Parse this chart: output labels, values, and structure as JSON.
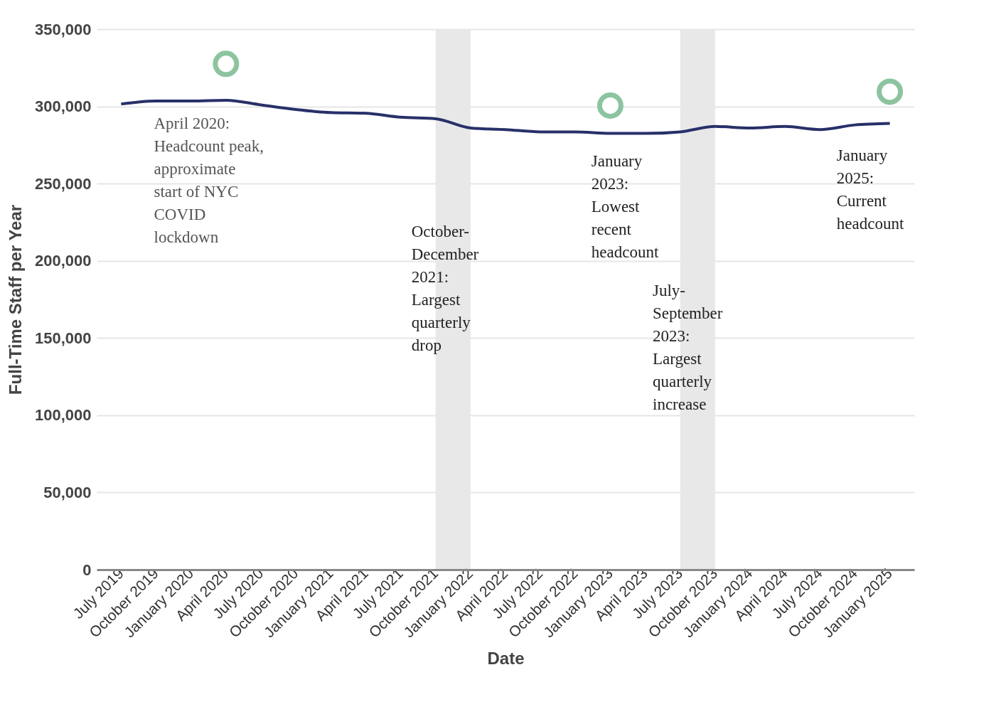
{
  "chart_data": {
    "type": "line",
    "xlabel": "Date",
    "ylabel": "Full-Time Staff per Year",
    "categories": [
      "July 2019",
      "October 2019",
      "January 2020",
      "April 2020",
      "July 2020",
      "October 2020",
      "January 2021",
      "April 2021",
      "July 2021",
      "October 2021",
      "January 2022",
      "April 2022",
      "July 2022",
      "October 2022",
      "January 2023",
      "April 2023",
      "July 2023",
      "October 2023",
      "January 2024",
      "April 2024",
      "July 2024",
      "October 2024",
      "January 2025"
    ],
    "series": [
      {
        "type": "line",
        "color": "#283069",
        "values": [
          301500,
          303500,
          303500,
          304000,
          301000,
          298000,
          296000,
          295500,
          293000,
          292000,
          286000,
          285000,
          283500,
          283500,
          282500,
          282500,
          283500,
          287000,
          286000,
          287000,
          285000,
          288000,
          289000
        ]
      },
      {
        "type": "scatter",
        "color": "#8cc4a0",
        "x": [
          "April 2020",
          "January 2023",
          "January 2025"
        ],
        "values": [
          327500,
          300500,
          309500
        ]
      }
    ],
    "bands": [
      {
        "axis": "x",
        "from": "October 2021",
        "to": "January 2022",
        "color": "#e8e8e8"
      },
      {
        "axis": "x",
        "from": "July 2023",
        "to": "October 2023",
        "color": "#e8e8e8"
      }
    ],
    "annotations": [
      "April 2020:\nHeadcount peak,\napproximate\nstart of NYC\nCOVID\nlockdown",
      "October-\nDecember\n2021:\nLargest\nquarterly\ndrop",
      "January\n2023:\nLowest\nrecent\nheadcount",
      "July-\nSeptember\n2023:\nLargest\nquarterly\nincrease",
      "January\n2025:\nCurrent\nheadcount"
    ],
    "ylim": [
      0,
      350000
    ],
    "yticks": [
      0,
      {
        "value": 50000,
        "label": "50,000"
      },
      {
        "value": 100000,
        "label": "100,000"
      },
      {
        "value": 150000,
        "label": "150,000"
      },
      {
        "value": 200000,
        "label": "200,000"
      },
      {
        "value": 250000,
        "label": "250,000"
      },
      {
        "value": 300000,
        "label": "300,000"
      },
      {
        "value": 350000,
        "label": "350,000"
      }
    ],
    "grid": "y"
  }
}
